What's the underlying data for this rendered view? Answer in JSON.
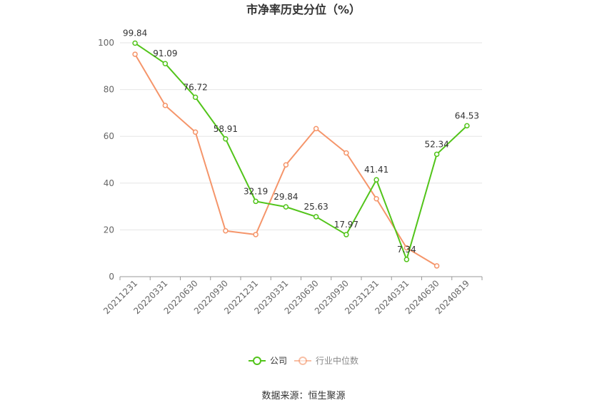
{
  "title": "市净率历史分位（%）",
  "source": "数据来源：恒生聚源",
  "colors": {
    "company": "#52c41a",
    "industry": "#f5956a",
    "grid": "#e6e6e6",
    "axis": "#999999"
  },
  "chart_data": {
    "type": "line",
    "title": "市净率历史分位（%）",
    "categories": [
      "20211231",
      "20220331",
      "20220630",
      "20220930",
      "20221231",
      "20230331",
      "20230630",
      "20230930",
      "20231231",
      "20240331",
      "20240630",
      "20240819"
    ],
    "ylim": [
      0,
      100
    ],
    "yticks": [
      0,
      20,
      40,
      60,
      80,
      100
    ],
    "grid": true,
    "legend": "bottom",
    "series": [
      {
        "name": "公司",
        "color": "#52c41a",
        "values": [
          99.84,
          91.09,
          76.72,
          58.91,
          32.19,
          29.84,
          25.63,
          17.97,
          41.41,
          7.34,
          52.34,
          64.53
        ],
        "show_labels": true
      },
      {
        "name": "行业中位数",
        "color": "#f5956a",
        "values": [
          95.1,
          73.2,
          61.8,
          19.6,
          18.0,
          47.8,
          63.3,
          52.9,
          33.3,
          12.3,
          4.6,
          null
        ],
        "show_labels": false
      }
    ]
  }
}
